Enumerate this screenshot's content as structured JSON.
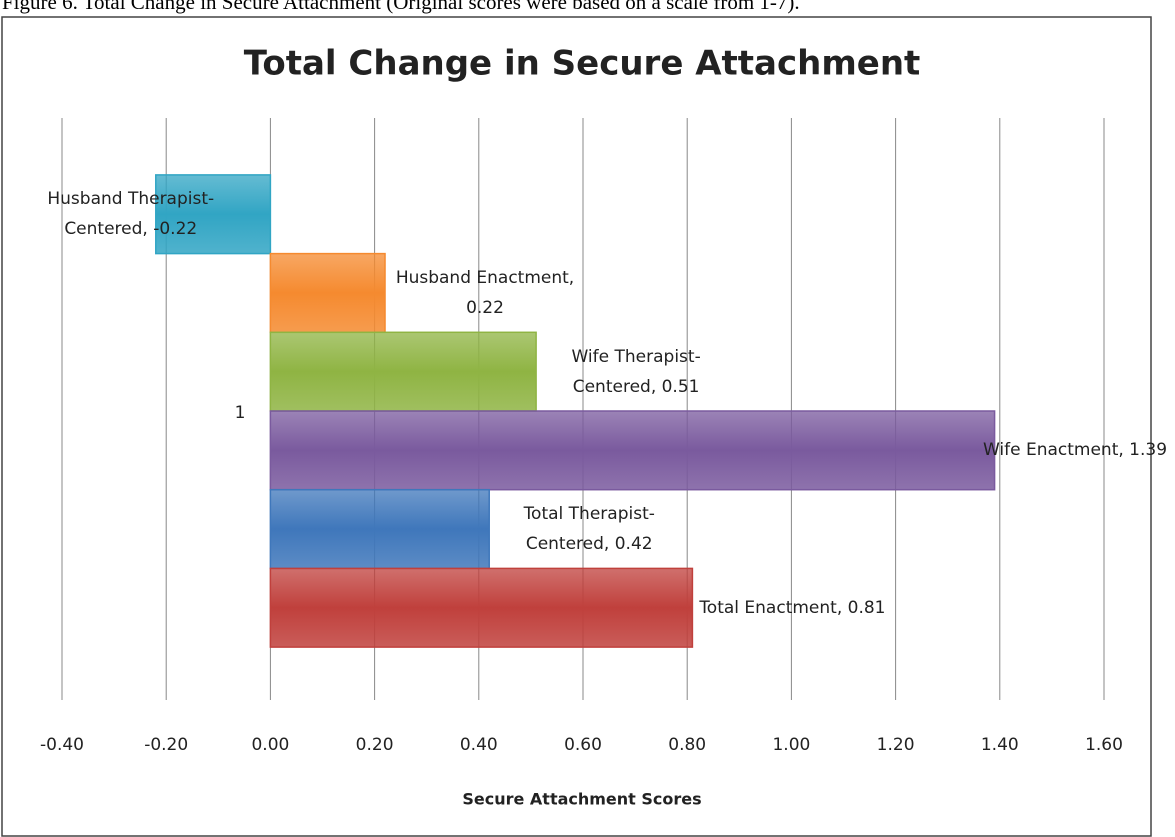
{
  "caption": "Figure 6. Total Change in Secure Attachment (Original scores were based on a scale from 1-7).",
  "chart_data": {
    "type": "hbar",
    "title": "Total Change in Secure Attachment",
    "x_label": "Secure Attachment Scores",
    "categories": [
      "1"
    ],
    "series": [
      {
        "name": "Husband Therapist-Centered",
        "color": "#31a5c4",
        "values": [
          -0.22
        ],
        "value_labels": [
          "Husband Therapist-Centered, -0.22"
        ]
      },
      {
        "name": "Husband Enactment",
        "color": "#f58a2f",
        "values": [
          0.22
        ],
        "value_labels": [
          "Husband Enactment, 0.22"
        ]
      },
      {
        "name": "Wife Therapist-Centered",
        "color": "#8fb443",
        "values": [
          0.51
        ],
        "value_labels": [
          "Wife Therapist-Centered, 0.51"
        ]
      },
      {
        "name": "Wife Enactment",
        "color": "#7a5a9e",
        "values": [
          1.39
        ],
        "value_labels": [
          "Wife Enactment, 1.39"
        ]
      },
      {
        "name": "Total Therapist-Centered",
        "color": "#3f77bb",
        "values": [
          0.42
        ],
        "value_labels": [
          "Total Therapist-Centered, 0.42"
        ]
      },
      {
        "name": "Total Enactment",
        "color": "#c0403c",
        "values": [
          0.81
        ],
        "value_labels": [
          "Total Enactment, 0.81"
        ]
      }
    ],
    "xlim": [
      -0.4,
      1.6
    ],
    "xticks": [
      {
        "value": -0.4,
        "label": "-0.40"
      },
      {
        "value": -0.2,
        "label": "-0.20"
      },
      {
        "value": 0,
        "label": "0.00"
      },
      {
        "value": 0.2,
        "label": "0.20"
      },
      {
        "value": 0.4,
        "label": "0.40"
      },
      {
        "value": 0.6,
        "label": "0.60"
      },
      {
        "value": 0.8,
        "label": "0.80"
      },
      {
        "value": 1,
        "label": "1.00"
      },
      {
        "value": 1.2,
        "label": "1.20"
      },
      {
        "value": 1.4,
        "label": "1.40"
      },
      {
        "value": 1.6,
        "label": "1.60"
      }
    ],
    "grid": true
  }
}
